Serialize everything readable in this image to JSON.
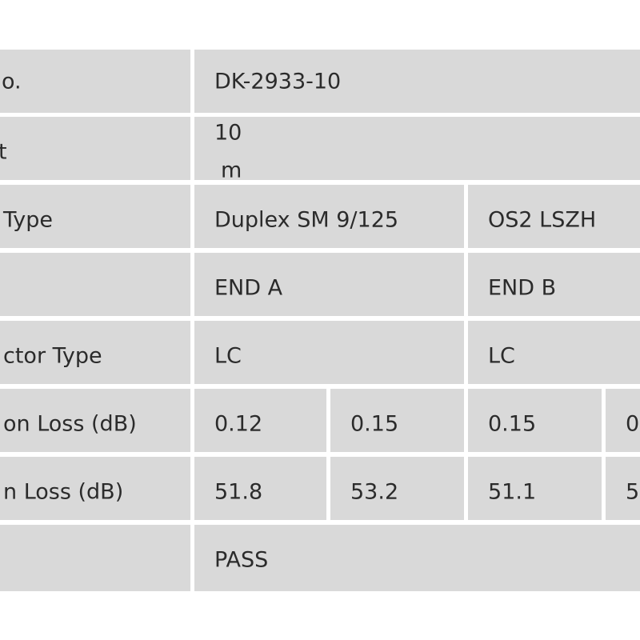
{
  "table": {
    "rows": [
      [
        "o.",
        "DK-2933-10"
      ],
      [
        "t",
        "10",
        "m"
      ],
      [
        "Type",
        "Duplex SM 9/125",
        "OS2 LSZH"
      ],
      [
        "END A",
        "END B"
      ],
      [
        "ctor Type",
        "LC",
        "LC"
      ],
      [
        "on Loss (dB)",
        "0.12",
        "0.15",
        "0.15",
        "0"
      ],
      [
        "n Loss (dB)",
        "51.8",
        "53.2",
        "51.1",
        "5"
      ],
      [
        "PASS"
      ]
    ]
  }
}
